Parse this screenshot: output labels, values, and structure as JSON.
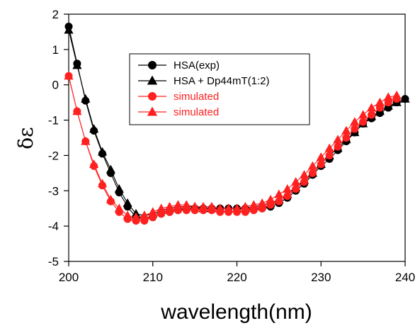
{
  "chart_data": {
    "type": "line",
    "xlabel": "wavelength(nm)",
    "ylabel": "δε",
    "xlim": [
      200,
      240
    ],
    "ylim": [
      -5,
      2
    ],
    "xticks": [
      200,
      210,
      220,
      230,
      240
    ],
    "yticks": [
      -5,
      -4,
      -3,
      -2,
      -1,
      0,
      1,
      2
    ],
    "legend_position": "upper-center",
    "series": [
      {
        "name": "HSA(exp)",
        "color": "#000000",
        "marker": "circle",
        "x": [
          200,
          201,
          202,
          203,
          204,
          205,
          206,
          207,
          208,
          209,
          210,
          211,
          212,
          213,
          214,
          215,
          216,
          217,
          218,
          219,
          220,
          221,
          222,
          223,
          224,
          225,
          226,
          227,
          228,
          229,
          230,
          231,
          232,
          233,
          234,
          235,
          236,
          237,
          238,
          239,
          240
        ],
        "y": [
          1.65,
          0.6,
          -0.45,
          -1.3,
          -1.95,
          -2.5,
          -3.05,
          -3.45,
          -3.75,
          -3.8,
          -3.75,
          -3.65,
          -3.6,
          -3.55,
          -3.5,
          -3.5,
          -3.5,
          -3.5,
          -3.5,
          -3.5,
          -3.5,
          -3.5,
          -3.5,
          -3.5,
          -3.45,
          -3.35,
          -3.2,
          -3.0,
          -2.8,
          -2.55,
          -2.3,
          -2.1,
          -1.85,
          -1.6,
          -1.35,
          -1.1,
          -0.95,
          -0.8,
          -0.65,
          -0.5,
          -0.4
        ]
      },
      {
        "name": "HSA + Dp44mT(1:2)",
        "color": "#000000",
        "marker": "triangle",
        "x": [
          200,
          201,
          202,
          203,
          204,
          205,
          206,
          207,
          208,
          209,
          210,
          211,
          212,
          213,
          214,
          215,
          216,
          217,
          218,
          219,
          220,
          221,
          222,
          223,
          224,
          225,
          226,
          227,
          228,
          229,
          230,
          231,
          232,
          233,
          234,
          235,
          236,
          237,
          238,
          239,
          240
        ],
        "y": [
          1.55,
          0.55,
          -0.4,
          -1.25,
          -1.9,
          -2.4,
          -2.95,
          -3.35,
          -3.65,
          -3.7,
          -3.65,
          -3.55,
          -3.5,
          -3.45,
          -3.45,
          -3.45,
          -3.5,
          -3.5,
          -3.5,
          -3.5,
          -3.5,
          -3.5,
          -3.45,
          -3.4,
          -3.35,
          -3.25,
          -3.1,
          -2.9,
          -2.7,
          -2.5,
          -2.25,
          -2.0,
          -1.8,
          -1.55,
          -1.35,
          -1.1,
          -0.9,
          -0.75,
          -0.6,
          -0.5,
          -0.4
        ]
      },
      {
        "name": "simulated",
        "color": "#ff2020",
        "marker": "circle",
        "x": [
          200,
          201,
          202,
          203,
          204,
          205,
          206,
          207,
          208,
          209,
          210,
          211,
          212,
          213,
          214,
          215,
          216,
          217,
          218,
          219,
          220,
          221,
          222,
          223,
          224,
          225,
          226,
          227,
          228,
          229,
          230,
          231,
          232,
          233,
          234,
          235,
          236,
          237,
          238,
          239
        ],
        "y": [
          0.25,
          -0.75,
          -1.6,
          -2.3,
          -2.85,
          -3.3,
          -3.6,
          -3.8,
          -3.85,
          -3.85,
          -3.75,
          -3.65,
          -3.6,
          -3.55,
          -3.55,
          -3.55,
          -3.55,
          -3.55,
          -3.6,
          -3.6,
          -3.6,
          -3.6,
          -3.55,
          -3.5,
          -3.4,
          -3.3,
          -3.15,
          -2.95,
          -2.75,
          -2.5,
          -2.25,
          -2.0,
          -1.75,
          -1.5,
          -1.25,
          -1.05,
          -0.85,
          -0.65,
          -0.5,
          -0.4
        ]
      },
      {
        "name": "simulated",
        "color": "#ff2020",
        "marker": "triangle",
        "x": [
          200,
          201,
          202,
          203,
          204,
          205,
          206,
          207,
          208,
          209,
          210,
          211,
          212,
          213,
          214,
          215,
          216,
          217,
          218,
          219,
          220,
          221,
          222,
          223,
          224,
          225,
          226,
          227,
          228,
          229,
          230,
          231,
          232,
          233,
          234,
          235,
          236,
          237,
          238,
          239
        ],
        "y": [
          0.25,
          -0.75,
          -1.6,
          -2.25,
          -2.8,
          -3.25,
          -3.5,
          -3.7,
          -3.75,
          -3.7,
          -3.6,
          -3.5,
          -3.45,
          -3.4,
          -3.4,
          -3.45,
          -3.45,
          -3.45,
          -3.5,
          -3.5,
          -3.5,
          -3.45,
          -3.4,
          -3.35,
          -3.25,
          -3.1,
          -2.95,
          -2.75,
          -2.55,
          -2.3,
          -2.05,
          -1.8,
          -1.55,
          -1.3,
          -1.05,
          -0.85,
          -0.65,
          -0.5,
          -0.35,
          -0.3
        ]
      }
    ]
  }
}
